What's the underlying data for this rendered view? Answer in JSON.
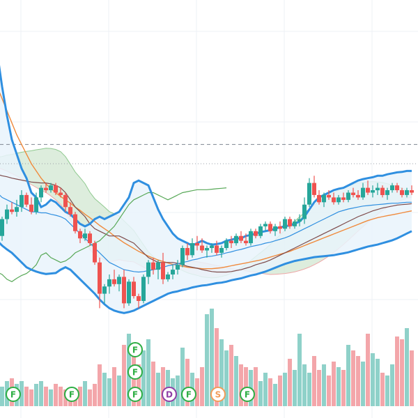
{
  "chart_data": {
    "type": "candlestick",
    "x": [
      0,
      1,
      2,
      3,
      4,
      5,
      6,
      7,
      8,
      9,
      10,
      11,
      12,
      13,
      14,
      15,
      16,
      17,
      18,
      19,
      20,
      21,
      22,
      23,
      24,
      25,
      26,
      27,
      28,
      29,
      30,
      31,
      32,
      33,
      34,
      35,
      36,
      37,
      38,
      39,
      40,
      41,
      42,
      43,
      44,
      45,
      46,
      47,
      48,
      49,
      50,
      51,
      52,
      53,
      54,
      55,
      56,
      57,
      58,
      59,
      60,
      61,
      62,
      63,
      64,
      65,
      66,
      67,
      68,
      69,
      70,
      71,
      72,
      73,
      74,
      75,
      76,
      77,
      78,
      79,
      80,
      81,
      82,
      83,
      84,
      85,
      86
    ],
    "candles": [
      [
        0.1,
        0.104,
        0.099,
        0.1
      ],
      [
        0.1,
        0.101,
        0.0945,
        0.095
      ],
      [
        0.095,
        0.099,
        0.094,
        0.0985
      ],
      [
        0.0985,
        0.1015,
        0.0975,
        0.1005
      ],
      [
        0.1005,
        0.102,
        0.0995,
        0.1
      ],
      [
        0.1,
        0.1025,
        0.099,
        0.101
      ],
      [
        0.101,
        0.1045,
        0.1,
        0.1035
      ],
      [
        0.1035,
        0.104,
        0.101,
        0.1015
      ],
      [
        0.1015,
        0.103,
        0.0995,
        0.1
      ],
      [
        0.1,
        0.104,
        0.0995,
        0.103
      ],
      [
        0.103,
        0.1055,
        0.102,
        0.105
      ],
      [
        0.105,
        0.106,
        0.104,
        0.1045
      ],
      [
        0.1045,
        0.106,
        0.104,
        0.1055
      ],
      [
        0.1055,
        0.106,
        0.1035,
        0.104
      ],
      [
        0.104,
        0.105,
        0.103,
        0.1035
      ],
      [
        0.1035,
        0.104,
        0.1,
        0.101
      ],
      [
        0.101,
        0.102,
        0.099,
        0.0995
      ],
      [
        0.0995,
        0.1,
        0.0955,
        0.096
      ],
      [
        0.096,
        0.0965,
        0.0935,
        0.0945
      ],
      [
        0.0945,
        0.0965,
        0.094,
        0.0955
      ],
      [
        0.0955,
        0.096,
        0.093,
        0.0935
      ],
      [
        0.0935,
        0.094,
        0.089,
        0.0895
      ],
      [
        0.0895,
        0.0905,
        0.08,
        0.083
      ],
      [
        0.083,
        0.085,
        0.081,
        0.0845
      ],
      [
        0.0845,
        0.087,
        0.083,
        0.086
      ],
      [
        0.086,
        0.088,
        0.0845,
        0.085
      ],
      [
        0.085,
        0.087,
        0.0835,
        0.0865
      ],
      [
        0.0865,
        0.088,
        0.08,
        0.081
      ],
      [
        0.081,
        0.086,
        0.0805,
        0.0855
      ],
      [
        0.0855,
        0.0865,
        0.082,
        0.0825
      ],
      [
        0.0825,
        0.083,
        0.08,
        0.0815
      ],
      [
        0.0815,
        0.087,
        0.081,
        0.0865
      ],
      [
        0.0865,
        0.09,
        0.085,
        0.0895
      ],
      [
        0.0895,
        0.0905,
        0.087,
        0.088
      ],
      [
        0.088,
        0.09,
        0.086,
        0.0895
      ],
      [
        0.0895,
        0.0915,
        0.085,
        0.086
      ],
      [
        0.086,
        0.0875,
        0.0855,
        0.087
      ],
      [
        0.087,
        0.089,
        0.086,
        0.088
      ],
      [
        0.088,
        0.09,
        0.087,
        0.089
      ],
      [
        0.089,
        0.093,
        0.0885,
        0.0925
      ],
      [
        0.0925,
        0.0935,
        0.09,
        0.091
      ],
      [
        0.091,
        0.0945,
        0.0905,
        0.0935
      ],
      [
        0.0935,
        0.095,
        0.092,
        0.093
      ],
      [
        0.093,
        0.0945,
        0.0915,
        0.092
      ],
      [
        0.092,
        0.093,
        0.0905,
        0.0925
      ],
      [
        0.0925,
        0.0935,
        0.0915,
        0.093
      ],
      [
        0.093,
        0.094,
        0.091,
        0.0915
      ],
      [
        0.0915,
        0.093,
        0.0905,
        0.0925
      ],
      [
        0.0925,
        0.0945,
        0.092,
        0.094
      ],
      [
        0.094,
        0.095,
        0.0925,
        0.0935
      ],
      [
        0.0935,
        0.0955,
        0.093,
        0.095
      ],
      [
        0.095,
        0.096,
        0.0935,
        0.094
      ],
      [
        0.094,
        0.0955,
        0.093,
        0.0935
      ],
      [
        0.0935,
        0.0965,
        0.093,
        0.096
      ],
      [
        0.096,
        0.0965,
        0.0945,
        0.095
      ],
      [
        0.095,
        0.0975,
        0.0945,
        0.097
      ],
      [
        0.097,
        0.098,
        0.096,
        0.0975
      ],
      [
        0.0975,
        0.098,
        0.0955,
        0.096
      ],
      [
        0.096,
        0.0975,
        0.095,
        0.097
      ],
      [
        0.097,
        0.098,
        0.0955,
        0.0965
      ],
      [
        0.0965,
        0.099,
        0.096,
        0.0985
      ],
      [
        0.0985,
        0.099,
        0.0965,
        0.097
      ],
      [
        0.097,
        0.0985,
        0.0965,
        0.098
      ],
      [
        0.098,
        0.0995,
        0.097,
        0.0985
      ],
      [
        0.0985,
        0.103,
        0.0975,
        0.1015
      ],
      [
        0.1015,
        0.107,
        0.101,
        0.106
      ],
      [
        0.106,
        0.1075,
        0.103,
        0.1035
      ],
      [
        0.1035,
        0.1045,
        0.1015,
        0.102
      ],
      [
        0.102,
        0.104,
        0.101,
        0.1035
      ],
      [
        0.1035,
        0.1045,
        0.1025,
        0.103
      ],
      [
        0.103,
        0.104,
        0.1015,
        0.102
      ],
      [
        0.102,
        0.1035,
        0.1015,
        0.103
      ],
      [
        0.103,
        0.104,
        0.102,
        0.1025
      ],
      [
        0.1025,
        0.1045,
        0.102,
        0.104
      ],
      [
        0.104,
        0.105,
        0.103,
        0.1035
      ],
      [
        0.1035,
        0.1045,
        0.1025,
        0.103
      ],
      [
        0.103,
        0.106,
        0.1025,
        0.105
      ],
      [
        0.105,
        0.1065,
        0.1035,
        0.104
      ],
      [
        0.104,
        0.1055,
        0.103,
        0.1045
      ],
      [
        0.1045,
        0.106,
        0.1035,
        0.105
      ],
      [
        0.105,
        0.1055,
        0.103,
        0.1035
      ],
      [
        0.1035,
        0.105,
        0.1025,
        0.1045
      ],
      [
        0.1045,
        0.106,
        0.104,
        0.1055
      ],
      [
        0.1055,
        0.106,
        0.104,
        0.1045
      ],
      [
        0.1045,
        0.105,
        0.103,
        0.1035
      ],
      [
        0.1035,
        0.105,
        0.103,
        0.1045
      ],
      [
        0.1045,
        0.1055,
        0.1035,
        0.104
      ]
    ],
    "volumes": [
      8,
      6,
      7,
      9,
      10,
      8,
      9,
      7,
      6,
      8,
      9,
      7,
      6,
      8,
      7,
      6,
      5,
      6,
      7,
      9,
      6,
      8,
      15,
      12,
      10,
      14,
      11,
      22,
      26,
      18,
      15,
      20,
      24,
      16,
      12,
      14,
      13,
      10,
      11,
      21,
      17,
      12,
      10,
      14,
      33,
      35,
      28,
      24,
      20,
      22,
      18,
      15,
      14,
      13,
      14,
      9,
      12,
      10,
      8,
      11,
      12,
      17,
      13,
      26,
      15,
      12,
      18,
      13,
      15,
      11,
      16,
      14,
      13,
      22,
      20,
      18,
      16,
      26,
      19,
      17,
      12,
      11,
      15,
      25,
      24,
      28,
      20
    ],
    "bollinger": {
      "upper": [
        0.138,
        0.133,
        0.126,
        0.12,
        0.115,
        0.112,
        0.109,
        0.107,
        0.104,
        0.103,
        0.101,
        0.1015,
        0.1025,
        0.102,
        0.101,
        0.1,
        0.0995,
        0.0985,
        0.0975,
        0.097,
        0.0975,
        0.0985,
        0.099,
        0.0985,
        0.099,
        0.0995,
        0.1,
        0.1015,
        0.103,
        0.106,
        0.1065,
        0.106,
        0.1055,
        0.103,
        0.1005,
        0.0985,
        0.097,
        0.0955,
        0.0945,
        0.094,
        0.0935,
        0.093,
        0.0935,
        0.094,
        0.0935,
        0.0932,
        0.0933,
        0.0935,
        0.094,
        0.0942,
        0.0945,
        0.0945,
        0.095,
        0.0952,
        0.0955,
        0.0958,
        0.096,
        0.0962,
        0.0965,
        0.0968,
        0.097,
        0.0972,
        0.0975,
        0.098,
        0.099,
        0.1005,
        0.102,
        0.103,
        0.1035,
        0.104,
        0.1045,
        0.1048,
        0.105,
        0.1055,
        0.106,
        0.1065,
        0.1068,
        0.107,
        0.1072,
        0.1075,
        0.1075,
        0.1078,
        0.108,
        0.1082,
        0.1083,
        0.1085,
        0.1085
      ],
      "middle": [
        0.105,
        0.104,
        0.103,
        0.1025,
        0.102,
        0.1015,
        0.101,
        0.1005,
        0.1,
        0.1,
        0.0998,
        0.0998,
        0.0995,
        0.0993,
        0.099,
        0.0985,
        0.0975,
        0.0965,
        0.0955,
        0.0945,
        0.0935,
        0.0925,
        0.0915,
        0.0905,
        0.0895,
        0.089,
        0.0885,
        0.088,
        0.0878,
        0.0876,
        0.0875,
        0.0876,
        0.0878,
        0.088,
        0.0882,
        0.0885,
        0.0888,
        0.089,
        0.0892,
        0.0895,
        0.0897,
        0.09,
        0.0902,
        0.0905,
        0.0907,
        0.0908,
        0.091,
        0.0912,
        0.0915,
        0.0917,
        0.092,
        0.0922,
        0.0925,
        0.0928,
        0.093,
        0.0932,
        0.0935,
        0.0937,
        0.094,
        0.0943,
        0.0946,
        0.095,
        0.0955,
        0.096,
        0.0965,
        0.097,
        0.0975,
        0.098,
        0.0985,
        0.099,
        0.0995,
        0.1,
        0.1003,
        0.1006,
        0.1008,
        0.101,
        0.1012,
        0.1013,
        0.1014,
        0.1015,
        0.1016,
        0.1017,
        0.1018,
        0.1018,
        0.1019,
        0.102,
        0.102
      ],
      "lower": [
        0.095,
        0.094,
        0.093,
        0.0922,
        0.0915,
        0.0905,
        0.0895,
        0.0885,
        0.088,
        0.0876,
        0.0873,
        0.0871,
        0.0872,
        0.0873,
        0.088,
        0.0885,
        0.088,
        0.087,
        0.086,
        0.085,
        0.084,
        0.083,
        0.0818,
        0.0808,
        0.08,
        0.0795,
        0.0792,
        0.079,
        0.0792,
        0.0795,
        0.08,
        0.0805,
        0.081,
        0.0815,
        0.082,
        0.0825,
        0.083,
        0.0833,
        0.0835,
        0.0838,
        0.084,
        0.0843,
        0.0845,
        0.0847,
        0.0848,
        0.085,
        0.0852,
        0.0853,
        0.0855,
        0.0858,
        0.086,
        0.0862,
        0.0865,
        0.0868,
        0.087,
        0.0873,
        0.0876,
        0.088,
        0.0884,
        0.0888,
        0.0892,
        0.0895,
        0.0898,
        0.09,
        0.0902,
        0.0904,
        0.0906,
        0.0907,
        0.0908,
        0.0909,
        0.091,
        0.0912,
        0.0914,
        0.0916,
        0.0919,
        0.0922,
        0.0925,
        0.0928,
        0.093,
        0.0932,
        0.0935,
        0.0938,
        0.0941,
        0.0945,
        0.095,
        0.0955,
        0.096
      ]
    },
    "moving_average": [
      0.128,
      0.126,
      0.1235,
      0.121,
      0.1185,
      0.116,
      0.114,
      0.112,
      0.11,
      0.1085,
      0.107,
      0.1058,
      0.1048,
      0.104,
      0.1032,
      0.1025,
      0.1018,
      0.101,
      0.1003,
      0.0995,
      0.0988,
      0.098,
      0.0972,
      0.0965,
      0.0958,
      0.095,
      0.0943,
      0.0936,
      0.093,
      0.0924,
      0.0918,
      0.0913,
      0.0908,
      0.0904,
      0.09,
      0.0897,
      0.0894,
      0.0891,
      0.0889,
      0.0887,
      0.0885,
      0.0884,
      0.0883,
      0.0882,
      0.0882,
      0.0882,
      0.0883,
      0.0884,
      0.0886,
      0.0888,
      0.089,
      0.0892,
      0.0894,
      0.0896,
      0.0898,
      0.09,
      0.0903,
      0.0906,
      0.0909,
      0.0912,
      0.0915,
      0.0918,
      0.0922,
      0.0926,
      0.093,
      0.0934,
      0.0938,
      0.0942,
      0.0946,
      0.095,
      0.0954,
      0.0958,
      0.0962,
      0.0966,
      0.097,
      0.0974,
      0.0978,
      0.0982,
      0.0985,
      0.0988,
      0.099,
      0.0992,
      0.0994,
      0.0996,
      0.0998,
      0.1,
      0.1002
    ],
    "ichimoku": {
      "tenkan": [
        0.108,
        0.1078,
        0.1075,
        0.1073,
        0.107,
        0.1068,
        0.1066,
        0.1064,
        0.1062,
        0.1061,
        0.106,
        0.106,
        0.1058,
        0.1055,
        0.105,
        0.104,
        0.1025,
        0.101,
        0.1,
        0.099,
        0.0975,
        0.0965,
        0.096,
        0.0955,
        0.095,
        0.095,
        0.095,
        0.0945,
        0.094,
        0.0935,
        0.0925,
        0.0915,
        0.0905,
        0.09,
        0.0895,
        0.0895,
        0.0895,
        0.0895,
        0.0893,
        0.089,
        0.0887,
        0.0885,
        0.0883,
        0.088,
        0.0878,
        0.0876,
        0.0875,
        0.0875,
        0.0875,
        0.0876,
        0.0878,
        0.088,
        0.0883,
        0.0886,
        0.089,
        0.0893,
        0.0896,
        0.09,
        0.0905,
        0.091,
        0.0915,
        0.092,
        0.0925,
        0.093,
        0.0935,
        0.094,
        0.0945,
        0.095,
        0.0955,
        0.096,
        0.0965,
        0.097,
        0.0975,
        0.098,
        0.0985,
        0.099,
        0.0994,
        0.0998,
        0.1002,
        0.1005,
        0.1008,
        0.101,
        0.1012,
        0.1014,
        0.1015,
        0.1016,
        0.1017
      ],
      "chikou": [
        0.088,
        0.0875,
        0.087,
        0.086,
        0.0855,
        0.0862,
        0.0868,
        0.0872,
        0.088,
        0.089,
        0.091,
        0.0915,
        0.0905,
        0.09,
        0.0895,
        0.0898,
        0.0905,
        0.0915,
        0.092,
        0.0925,
        0.093,
        0.0935,
        0.094,
        0.095,
        0.096,
        0.097,
        0.0985,
        0.1,
        0.1015,
        0.1025,
        0.103,
        0.1035,
        0.104,
        0.104,
        0.1035,
        0.103,
        0.1025,
        0.103,
        0.1035,
        0.104,
        0.1042,
        0.1044,
        0.1046,
        0.1046,
        0.1046,
        0.1047,
        0.1048,
        0.1049,
        0.105
      ]
    },
    "reference_line_upper": 0.114,
    "reference_line_lower": 0.11,
    "event_markers": [
      {
        "label": "F",
        "color": "#2eae44",
        "index": 4
      },
      {
        "label": "F",
        "color": "#2eae44",
        "index": 16
      },
      {
        "label": "F",
        "color": "#2eae44",
        "index": 29,
        "stack": 2
      },
      {
        "label": "F",
        "color": "#2eae44",
        "index": 29,
        "stack": 1
      },
      {
        "label": "F",
        "color": "#2eae44",
        "index": 29
      },
      {
        "label": "D",
        "color": "#8f3ea6",
        "index": 36
      },
      {
        "label": "F",
        "color": "#2eae44",
        "index": 40
      },
      {
        "label": "S",
        "color": "#f39c5a",
        "index": 46
      },
      {
        "label": "F",
        "color": "#2eae44",
        "index": 52
      }
    ],
    "colors": {
      "up": "#26a69a",
      "down": "#ef5350",
      "bollinger": "#2f8fe0",
      "bollinger_fill": "#e9f3fc",
      "ma": "#f08a3c",
      "tenkan": "#7d4a4a",
      "chikou": "#57a857",
      "cloud_bull": "#cfe6cf",
      "cloud_bear": "#f7d3d3"
    },
    "ylim": [
      0.076,
      0.144
    ],
    "grid": true
  }
}
